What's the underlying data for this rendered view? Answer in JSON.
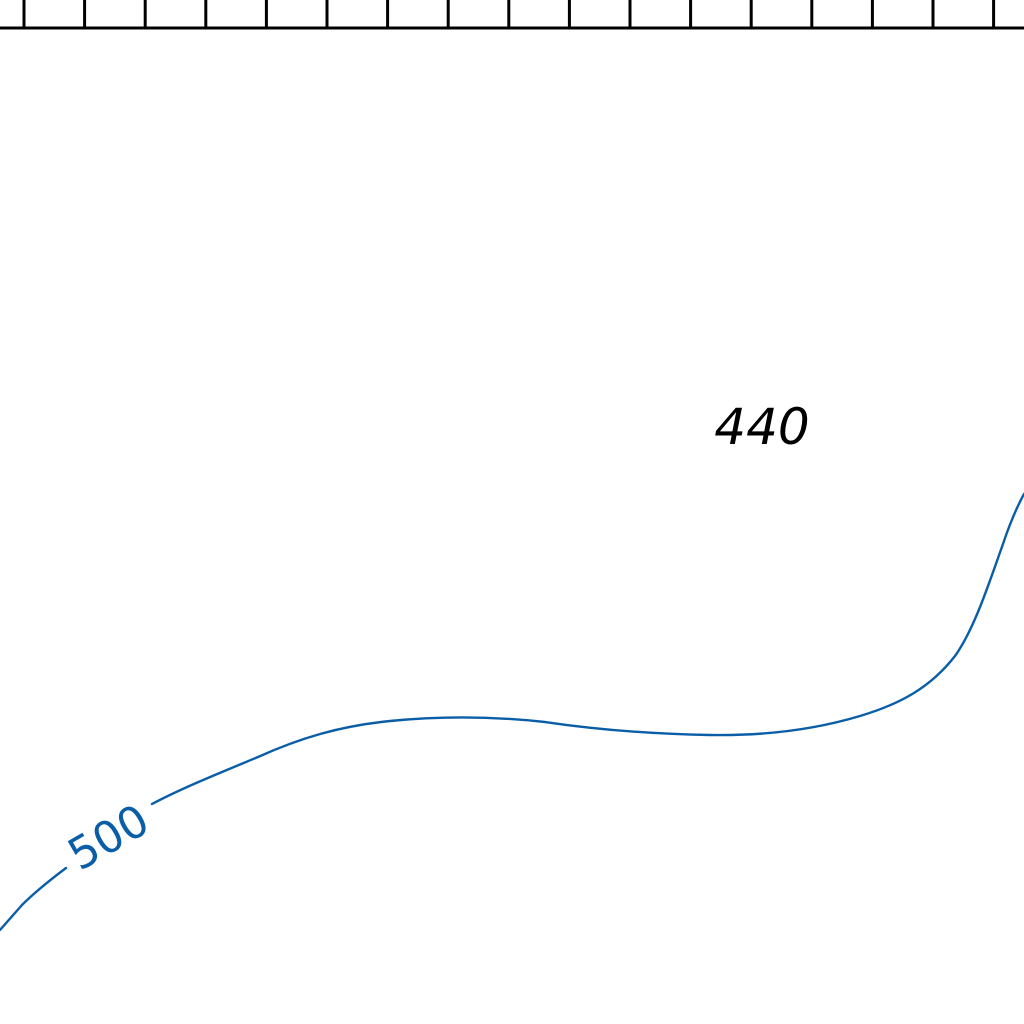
{
  "map": {
    "spot_elevation": {
      "label": "440"
    },
    "contour": {
      "label": "500",
      "color": "#0a5ea8"
    },
    "neatline": {
      "color": "#000000",
      "tick_count": 17
    }
  }
}
